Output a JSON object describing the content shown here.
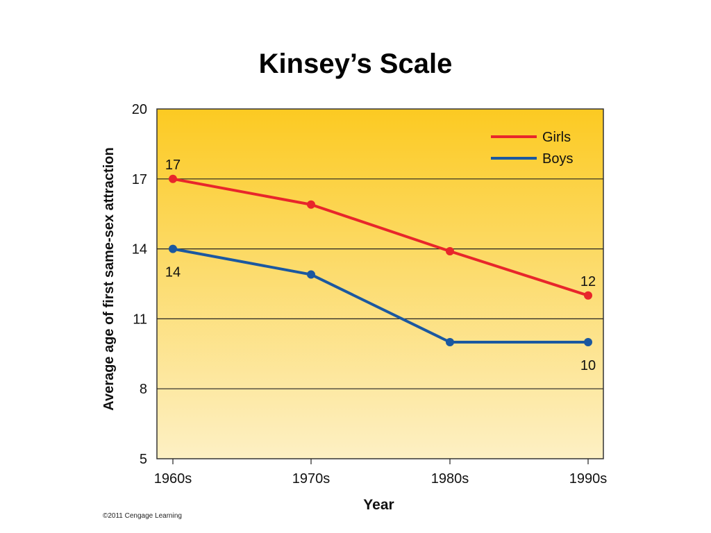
{
  "page": {
    "title": "Kinsey’s Scale",
    "copyright": "©2011 Cengage Learning"
  },
  "chart_data": {
    "type": "line",
    "title": "Kinsey’s Scale",
    "xlabel": "Year",
    "ylabel": "Average age of first same-sex attraction",
    "categories": [
      "1960s",
      "1970s",
      "1980s",
      "1990s"
    ],
    "ylim": [
      5,
      20
    ],
    "yticks": [
      5,
      8,
      11,
      14,
      17,
      20
    ],
    "grid": true,
    "legend_position": "top-right",
    "series": [
      {
        "name": "Girls",
        "color": "#e8262b",
        "values": [
          17,
          15.9,
          13.9,
          12
        ]
      },
      {
        "name": "Boys",
        "color": "#1b58a0",
        "values": [
          14,
          12.9,
          10,
          10
        ]
      }
    ],
    "annotations": [
      {
        "series": 0,
        "index": 0,
        "text": "17",
        "position": "above"
      },
      {
        "series": 1,
        "index": 0,
        "text": "14",
        "position": "below"
      },
      {
        "series": 0,
        "index": 3,
        "text": "12",
        "position": "above"
      },
      {
        "series": 1,
        "index": 3,
        "text": "10",
        "position": "below"
      }
    ],
    "background_gradient": [
      "#fcca22",
      "#fdf0c4"
    ]
  }
}
